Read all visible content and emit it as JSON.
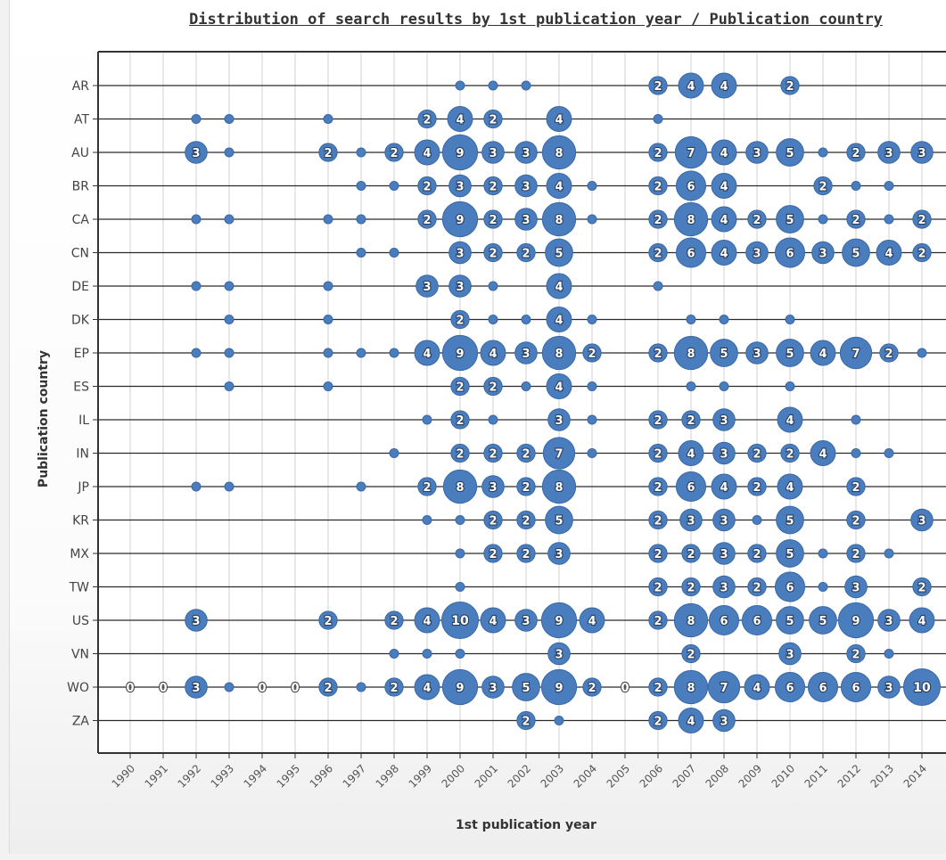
{
  "chart_data": {
    "type": "scatter",
    "subtype": "bubble-matrix",
    "title": "Distribution of search results by 1st publication year / Publication country",
    "xlabel": "1st publication year",
    "ylabel": "Publication country",
    "years": [
      1990,
      1991,
      1992,
      1993,
      1994,
      1995,
      1996,
      1997,
      1998,
      1999,
      2000,
      2001,
      2002,
      2003,
      2004,
      2005,
      2006,
      2007,
      2008,
      2009,
      2010,
      2011,
      2012,
      2013,
      2014
    ],
    "countries": [
      "AR",
      "AT",
      "AU",
      "BR",
      "CA",
      "CN",
      "DE",
      "DK",
      "EP",
      "ES",
      "IL",
      "IN",
      "JP",
      "KR",
      "MX",
      "TW",
      "US",
      "VN",
      "WO",
      "ZA"
    ],
    "grid": true,
    "bubble_color": "#4a7dbd",
    "series": [
      {
        "name": "AR",
        "points": [
          [
            2000,
            1
          ],
          [
            2001,
            1
          ],
          [
            2002,
            1
          ],
          [
            2006,
            2
          ],
          [
            2007,
            4
          ],
          [
            2008,
            4
          ],
          [
            2010,
            2
          ]
        ]
      },
      {
        "name": "AT",
        "points": [
          [
            1992,
            1
          ],
          [
            1993,
            1
          ],
          [
            1996,
            1
          ],
          [
            1999,
            2
          ],
          [
            2000,
            4
          ],
          [
            2001,
            2
          ],
          [
            2003,
            4
          ],
          [
            2006,
            1
          ]
        ]
      },
      {
        "name": "AU",
        "points": [
          [
            1992,
            3
          ],
          [
            1993,
            1
          ],
          [
            1996,
            2
          ],
          [
            1997,
            1
          ],
          [
            1998,
            2
          ],
          [
            1999,
            4
          ],
          [
            2000,
            9
          ],
          [
            2001,
            3
          ],
          [
            2002,
            3
          ],
          [
            2003,
            8
          ],
          [
            2006,
            2
          ],
          [
            2007,
            7
          ],
          [
            2008,
            4
          ],
          [
            2009,
            3
          ],
          [
            2010,
            5
          ],
          [
            2011,
            1
          ],
          [
            2012,
            2
          ],
          [
            2013,
            3
          ],
          [
            2014,
            3
          ]
        ]
      },
      {
        "name": "BR",
        "points": [
          [
            1997,
            1
          ],
          [
            1998,
            1
          ],
          [
            1999,
            2
          ],
          [
            2000,
            3
          ],
          [
            2001,
            2
          ],
          [
            2002,
            3
          ],
          [
            2003,
            4
          ],
          [
            2004,
            1
          ],
          [
            2006,
            2
          ],
          [
            2007,
            6
          ],
          [
            2008,
            4
          ],
          [
            2011,
            2
          ],
          [
            2012,
            1
          ],
          [
            2013,
            1
          ]
        ]
      },
      {
        "name": "CA",
        "points": [
          [
            1992,
            1
          ],
          [
            1993,
            1
          ],
          [
            1996,
            1
          ],
          [
            1997,
            1
          ],
          [
            1999,
            2
          ],
          [
            2000,
            9
          ],
          [
            2001,
            2
          ],
          [
            2002,
            3
          ],
          [
            2003,
            8
          ],
          [
            2004,
            1
          ],
          [
            2006,
            2
          ],
          [
            2007,
            8
          ],
          [
            2008,
            4
          ],
          [
            2009,
            2
          ],
          [
            2010,
            5
          ],
          [
            2011,
            1
          ],
          [
            2012,
            2
          ],
          [
            2013,
            1
          ],
          [
            2014,
            2
          ]
        ]
      },
      {
        "name": "CN",
        "points": [
          [
            1997,
            1
          ],
          [
            1998,
            1
          ],
          [
            2000,
            3
          ],
          [
            2001,
            2
          ],
          [
            2002,
            2
          ],
          [
            2003,
            5
          ],
          [
            2006,
            2
          ],
          [
            2007,
            6
          ],
          [
            2008,
            4
          ],
          [
            2009,
            3
          ],
          [
            2010,
            6
          ],
          [
            2011,
            3
          ],
          [
            2012,
            5
          ],
          [
            2013,
            4
          ],
          [
            2014,
            2
          ]
        ]
      },
      {
        "name": "DE",
        "points": [
          [
            1992,
            1
          ],
          [
            1993,
            1
          ],
          [
            1996,
            1
          ],
          [
            1999,
            3
          ],
          [
            2000,
            3
          ],
          [
            2001,
            1
          ],
          [
            2003,
            4
          ],
          [
            2006,
            1
          ]
        ]
      },
      {
        "name": "DK",
        "points": [
          [
            1993,
            1
          ],
          [
            1996,
            1
          ],
          [
            2000,
            2
          ],
          [
            2001,
            1
          ],
          [
            2002,
            1
          ],
          [
            2003,
            4
          ],
          [
            2004,
            1
          ],
          [
            2007,
            1
          ],
          [
            2008,
            1
          ],
          [
            2010,
            1
          ]
        ]
      },
      {
        "name": "EP",
        "points": [
          [
            1992,
            1
          ],
          [
            1993,
            1
          ],
          [
            1996,
            1
          ],
          [
            1997,
            1
          ],
          [
            1998,
            1
          ],
          [
            1999,
            4
          ],
          [
            2000,
            9
          ],
          [
            2001,
            4
          ],
          [
            2002,
            3
          ],
          [
            2003,
            8
          ],
          [
            2004,
            2
          ],
          [
            2006,
            2
          ],
          [
            2007,
            8
          ],
          [
            2008,
            5
          ],
          [
            2009,
            3
          ],
          [
            2010,
            5
          ],
          [
            2011,
            4
          ],
          [
            2012,
            7
          ],
          [
            2013,
            2
          ],
          [
            2014,
            1
          ]
        ]
      },
      {
        "name": "ES",
        "points": [
          [
            1993,
            1
          ],
          [
            1996,
            1
          ],
          [
            2000,
            2
          ],
          [
            2001,
            2
          ],
          [
            2002,
            1
          ],
          [
            2003,
            4
          ],
          [
            2004,
            1
          ],
          [
            2007,
            1
          ],
          [
            2008,
            1
          ],
          [
            2010,
            1
          ]
        ]
      },
      {
        "name": "IL",
        "points": [
          [
            1999,
            1
          ],
          [
            2000,
            2
          ],
          [
            2001,
            1
          ],
          [
            2003,
            3
          ],
          [
            2004,
            1
          ],
          [
            2006,
            2
          ],
          [
            2007,
            2
          ],
          [
            2008,
            3
          ],
          [
            2010,
            4
          ],
          [
            2012,
            1
          ]
        ]
      },
      {
        "name": "IN",
        "points": [
          [
            1998,
            1
          ],
          [
            2000,
            2
          ],
          [
            2001,
            2
          ],
          [
            2002,
            2
          ],
          [
            2003,
            7
          ],
          [
            2004,
            1
          ],
          [
            2006,
            2
          ],
          [
            2007,
            4
          ],
          [
            2008,
            3
          ],
          [
            2009,
            2
          ],
          [
            2010,
            2
          ],
          [
            2011,
            4
          ],
          [
            2012,
            1
          ],
          [
            2013,
            1
          ]
        ]
      },
      {
        "name": "JP",
        "points": [
          [
            1992,
            1
          ],
          [
            1993,
            1
          ],
          [
            1997,
            1
          ],
          [
            1999,
            2
          ],
          [
            2000,
            8
          ],
          [
            2001,
            3
          ],
          [
            2002,
            2
          ],
          [
            2003,
            8
          ],
          [
            2006,
            2
          ],
          [
            2007,
            6
          ],
          [
            2008,
            4
          ],
          [
            2009,
            2
          ],
          [
            2010,
            4
          ],
          [
            2012,
            2
          ]
        ]
      },
      {
        "name": "KR",
        "points": [
          [
            1999,
            1
          ],
          [
            2000,
            1
          ],
          [
            2001,
            2
          ],
          [
            2002,
            2
          ],
          [
            2003,
            5
          ],
          [
            2006,
            2
          ],
          [
            2007,
            3
          ],
          [
            2008,
            3
          ],
          [
            2009,
            1
          ],
          [
            2010,
            5
          ],
          [
            2012,
            2
          ],
          [
            2014,
            3
          ]
        ]
      },
      {
        "name": "MX",
        "points": [
          [
            2000,
            1
          ],
          [
            2001,
            2
          ],
          [
            2002,
            2
          ],
          [
            2003,
            3
          ],
          [
            2006,
            2
          ],
          [
            2007,
            2
          ],
          [
            2008,
            3
          ],
          [
            2009,
            2
          ],
          [
            2010,
            5
          ],
          [
            2011,
            1
          ],
          [
            2012,
            2
          ],
          [
            2013,
            1
          ]
        ]
      },
      {
        "name": "TW",
        "points": [
          [
            2000,
            1
          ],
          [
            2006,
            2
          ],
          [
            2007,
            2
          ],
          [
            2008,
            3
          ],
          [
            2009,
            2
          ],
          [
            2010,
            6
          ],
          [
            2011,
            1
          ],
          [
            2012,
            3
          ],
          [
            2014,
            2
          ]
        ]
      },
      {
        "name": "US",
        "points": [
          [
            1992,
            3
          ],
          [
            1996,
            2
          ],
          [
            1998,
            2
          ],
          [
            1999,
            4
          ],
          [
            2000,
            10
          ],
          [
            2001,
            4
          ],
          [
            2002,
            3
          ],
          [
            2003,
            9
          ],
          [
            2004,
            4
          ],
          [
            2006,
            2
          ],
          [
            2007,
            8
          ],
          [
            2008,
            6
          ],
          [
            2009,
            6
          ],
          [
            2010,
            5
          ],
          [
            2011,
            5
          ],
          [
            2012,
            9
          ],
          [
            2013,
            3
          ],
          [
            2014,
            4
          ]
        ]
      },
      {
        "name": "VN",
        "points": [
          [
            1998,
            1
          ],
          [
            1999,
            1
          ],
          [
            2000,
            1
          ],
          [
            2003,
            3
          ],
          [
            2007,
            2
          ],
          [
            2010,
            3
          ],
          [
            2012,
            2
          ],
          [
            2013,
            1
          ]
        ]
      },
      {
        "name": "WO",
        "points": [
          [
            1990,
            0
          ],
          [
            1991,
            0
          ],
          [
            1992,
            3
          ],
          [
            1993,
            1
          ],
          [
            1994,
            0
          ],
          [
            1995,
            0
          ],
          [
            1996,
            2
          ],
          [
            1997,
            1
          ],
          [
            1998,
            2
          ],
          [
            1999,
            4
          ],
          [
            2000,
            9
          ],
          [
            2001,
            3
          ],
          [
            2002,
            5
          ],
          [
            2003,
            9
          ],
          [
            2004,
            2
          ],
          [
            2005,
            0
          ],
          [
            2006,
            2
          ],
          [
            2007,
            8
          ],
          [
            2008,
            7
          ],
          [
            2009,
            4
          ],
          [
            2010,
            6
          ],
          [
            2011,
            6
          ],
          [
            2012,
            6
          ],
          [
            2013,
            3
          ],
          [
            2014,
            10
          ]
        ]
      },
      {
        "name": "ZA",
        "points": [
          [
            2002,
            2
          ],
          [
            2003,
            1
          ],
          [
            2006,
            2
          ],
          [
            2007,
            4
          ],
          [
            2008,
            3
          ]
        ]
      }
    ]
  }
}
